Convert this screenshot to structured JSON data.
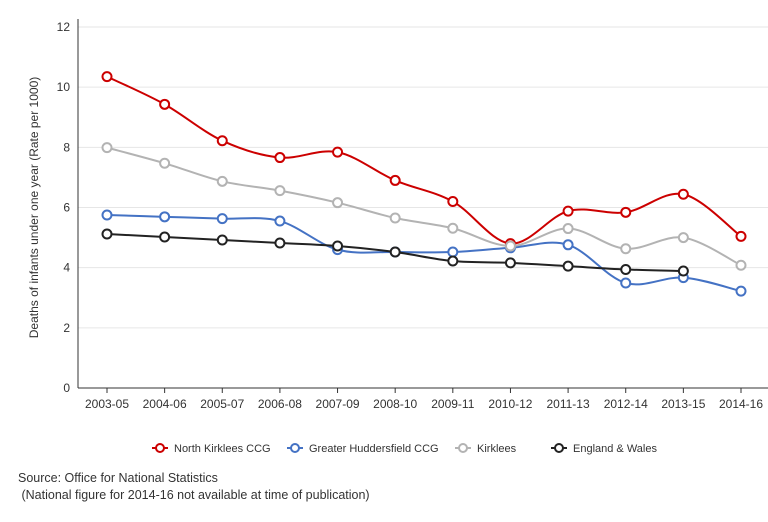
{
  "chart_data": {
    "type": "line",
    "title": "",
    "xlabel": "",
    "ylabel": "Deaths of infants under one year (Rate per 1000)",
    "ylim": [
      0,
      12
    ],
    "yticks": [
      0,
      2,
      4,
      6,
      8,
      10,
      12
    ],
    "grid": true,
    "legend": "bottom",
    "categories": [
      "2003-05",
      "2004-06",
      "2005-07",
      "2006-08",
      "2007-09",
      "2008-10",
      "2009-11",
      "2010-12",
      "2011-13",
      "2012-14",
      "2013-15",
      "2014-16"
    ],
    "series": [
      {
        "name": "North Kirklees CCG",
        "color": "#cc0000",
        "values": [
          10.35,
          9.43,
          8.22,
          7.66,
          7.84,
          6.9,
          6.2,
          4.8,
          5.88,
          5.84,
          6.44,
          5.04
        ]
      },
      {
        "name": "Greater Huddersfield CCG",
        "color": "#4472c4",
        "values": [
          5.75,
          5.69,
          5.63,
          5.55,
          4.6,
          4.52,
          4.52,
          4.66,
          4.76,
          3.49,
          3.67,
          3.22
        ]
      },
      {
        "name": "Kirklees",
        "color": "#b3b3b3",
        "values": [
          7.99,
          7.47,
          6.87,
          6.56,
          6.16,
          5.65,
          5.31,
          4.72,
          5.3,
          4.63,
          5.0,
          4.08
        ]
      },
      {
        "name": "England & Wales",
        "color": "#222222",
        "values": [
          5.12,
          5.02,
          4.92,
          4.82,
          4.72,
          4.52,
          4.22,
          4.16,
          4.05,
          3.94,
          3.89,
          null
        ]
      }
    ]
  },
  "source": {
    "line1": "Source: Office for National Statistics",
    "line2": " (National figure for 2014-16 not available at time of publication)"
  }
}
